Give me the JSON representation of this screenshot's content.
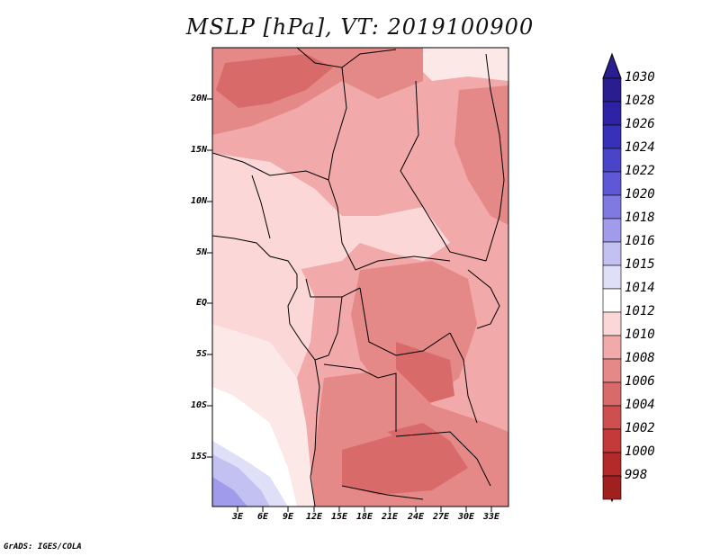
{
  "title": "MSLP [hPa], VT: 2019100900",
  "footer": "GrADS: IGES/COLA",
  "map": {
    "variable": "MSLP",
    "units": "hPa",
    "valid_time": "2019100900",
    "y_axis_labels": [
      "20N",
      "15N",
      "10N",
      "5N",
      "EQ",
      "5S",
      "10S",
      "15S"
    ],
    "x_axis_labels": [
      "3E",
      "6E",
      "9E",
      "12E",
      "15E",
      "18E",
      "21E",
      "24E",
      "27E",
      "30E",
      "33E"
    ]
  },
  "colorbar": {
    "labels": [
      "1030",
      "1028",
      "1026",
      "1024",
      "1022",
      "1020",
      "1018",
      "1016",
      "1015",
      "1014",
      "1012",
      "1010",
      "1008",
      "1006",
      "1004",
      "1002",
      "1000",
      "998"
    ],
    "colors": [
      "#2a1d8f",
      "#2e23a6",
      "#3730b8",
      "#4a44c8",
      "#5e58d6",
      "#7f79e2",
      "#a09bea",
      "#c3c0f2",
      "#e0dff8",
      "#ffffff",
      "#fbd7d7",
      "#f2a9a9",
      "#e48888",
      "#d96a6a",
      "#cf4f4f",
      "#c43a3a",
      "#b42a2a",
      "#a01f1f"
    ]
  }
}
